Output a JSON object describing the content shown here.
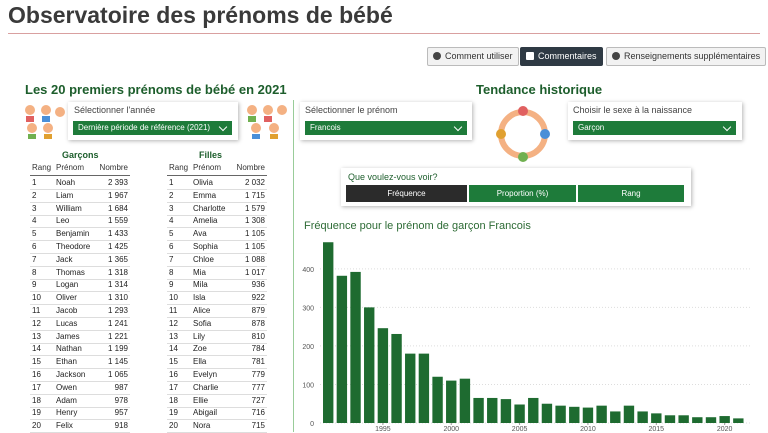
{
  "header": {
    "title": "Observatoire des prénoms de bébé",
    "buttons": [
      "Comment utiliser",
      "Commentaires",
      "Renseignements supplémentaires"
    ]
  },
  "left": {
    "title": "Les 20 premiers prénoms de bébé en 2021",
    "year_label": "Sélectionner l'année",
    "year_value": "Dernière période de référence (2021)",
    "boys": {
      "title": "Garçons",
      "headers": [
        "Rang",
        "Prénom",
        "Nombre"
      ],
      "rows": [
        [
          "1",
          "Noah",
          "2 393"
        ],
        [
          "2",
          "Liam",
          "1 967"
        ],
        [
          "3",
          "William",
          "1 684"
        ],
        [
          "4",
          "Leo",
          "1 559"
        ],
        [
          "5",
          "Benjamin",
          "1 433"
        ],
        [
          "6",
          "Theodore",
          "1 425"
        ],
        [
          "7",
          "Jack",
          "1 365"
        ],
        [
          "8",
          "Thomas",
          "1 318"
        ],
        [
          "9",
          "Logan",
          "1 314"
        ],
        [
          "10",
          "Oliver",
          "1 310"
        ],
        [
          "11",
          "Jacob",
          "1 293"
        ],
        [
          "12",
          "Lucas",
          "1 241"
        ],
        [
          "13",
          "James",
          "1 221"
        ],
        [
          "14",
          "Nathan",
          "1 199"
        ],
        [
          "15",
          "Ethan",
          "1 145"
        ],
        [
          "16",
          "Jackson",
          "1 065"
        ],
        [
          "17",
          "Owen",
          "987"
        ],
        [
          "18",
          "Adam",
          "978"
        ],
        [
          "19",
          "Henry",
          "957"
        ],
        [
          "20",
          "Felix",
          "918"
        ]
      ]
    },
    "girls": {
      "title": "Filles",
      "headers": [
        "Rang",
        "Prénom",
        "Nombre"
      ],
      "rows": [
        [
          "1",
          "Olivia",
          "2 032"
        ],
        [
          "2",
          "Emma",
          "1 715"
        ],
        [
          "3",
          "Charlotte",
          "1 579"
        ],
        [
          "4",
          "Amelia",
          "1 308"
        ],
        [
          "5",
          "Ava",
          "1 105"
        ],
        [
          "6",
          "Sophia",
          "1 105"
        ],
        [
          "7",
          "Chloe",
          "1 088"
        ],
        [
          "8",
          "Mia",
          "1 017"
        ],
        [
          "9",
          "Mila",
          "936"
        ],
        [
          "10",
          "Isla",
          "922"
        ],
        [
          "11",
          "Alice",
          "879"
        ],
        [
          "12",
          "Sofia",
          "878"
        ],
        [
          "13",
          "Lily",
          "810"
        ],
        [
          "14",
          "Zoe",
          "784"
        ],
        [
          "15",
          "Ella",
          "781"
        ],
        [
          "16",
          "Evelyn",
          "779"
        ],
        [
          "17",
          "Charlie",
          "777"
        ],
        [
          "18",
          "Ellie",
          "727"
        ],
        [
          "19",
          "Abigail",
          "716"
        ],
        [
          "20",
          "Nora",
          "715"
        ]
      ]
    }
  },
  "right": {
    "title": "Tendance historique",
    "name_label": "Sélectionner le prénom",
    "name_value": "Francois",
    "sex_label": "Choisir le sexe à la naissance",
    "sex_value": "Garçon",
    "question": "Que voulez-vous voir?",
    "options": [
      "Fréquence",
      "Proportion (%)",
      "Rang"
    ]
  },
  "chart_data": {
    "type": "bar",
    "title": "Fréquence pour le prénom de garçon Francois",
    "x": [
      1991,
      1992,
      1993,
      1994,
      1995,
      1996,
      1997,
      1998,
      1999,
      2000,
      2001,
      2002,
      2003,
      2004,
      2005,
      2006,
      2007,
      2008,
      2009,
      2010,
      2011,
      2012,
      2013,
      2014,
      2015,
      2016,
      2017,
      2018,
      2019,
      2020,
      2021
    ],
    "values": [
      469,
      382,
      392,
      300,
      246,
      231,
      180,
      180,
      120,
      110,
      115,
      65,
      65,
      62,
      48,
      65,
      50,
      45,
      42,
      40,
      45,
      30,
      45,
      30,
      25,
      20,
      20,
      15,
      15,
      18,
      12
    ],
    "color": "#1e6b30",
    "xlim": [
      1990.4,
      2022
    ],
    "xticks": [
      1995,
      2000,
      2005,
      2010,
      2015,
      2020
    ],
    "ylim": [
      0,
      480
    ],
    "yticks": [
      0,
      100,
      200,
      300,
      400
    ],
    "grid": true
  }
}
